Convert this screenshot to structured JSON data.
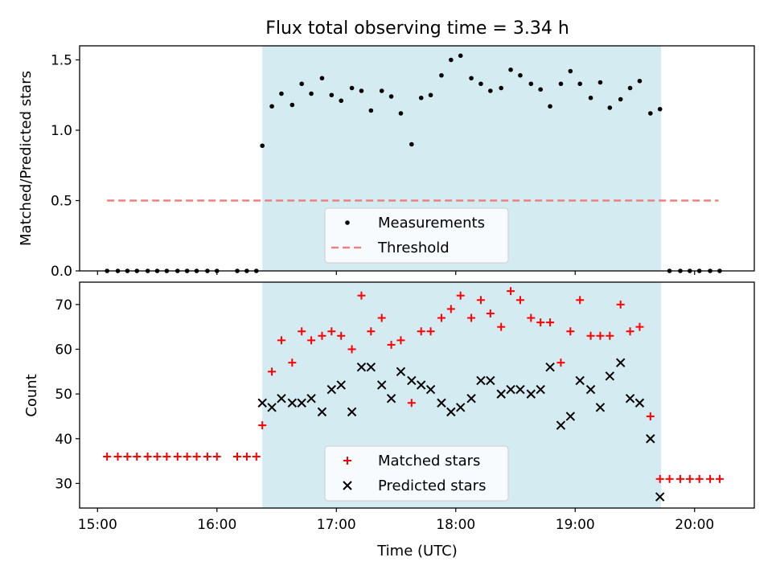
{
  "title": "Flux total observing time = 3.34 h",
  "chart_data": [
    {
      "type": "scatter",
      "title": "Flux total observing time = 3.34 h",
      "xlabel": "",
      "ylabel": "Matched/Predicted stars",
      "x_unit": "hours UTC",
      "xlim": [
        14.85,
        20.5
      ],
      "ylim": [
        0,
        1.6
      ],
      "yticks": [
        "0.0",
        "0.5",
        "1.0",
        "1.5"
      ],
      "shaded_region": {
        "x_start": 16.38,
        "x_end": 19.72,
        "color": "#add8e6"
      },
      "threshold": {
        "value": 0.5,
        "x_start": 15.08,
        "x_end": 20.2,
        "color": "#f08080"
      },
      "legend": {
        "placement": "lower center",
        "entries": [
          "Measurements",
          "Threshold"
        ]
      },
      "series": [
        {
          "name": "Measurements",
          "x": [
            15.08,
            15.17,
            15.25,
            15.33,
            15.42,
            15.5,
            15.58,
            15.67,
            15.75,
            15.83,
            15.92,
            16.0,
            16.17,
            16.25,
            16.33,
            16.38,
            16.46,
            16.54,
            16.63,
            16.71,
            16.79,
            16.88,
            16.96,
            17.04,
            17.13,
            17.21,
            17.29,
            17.38,
            17.46,
            17.54,
            17.63,
            17.71,
            17.79,
            17.88,
            17.96,
            18.04,
            18.13,
            18.21,
            18.29,
            18.38,
            18.46,
            18.54,
            18.63,
            18.71,
            18.79,
            18.88,
            18.96,
            19.04,
            19.13,
            19.21,
            19.29,
            19.38,
            19.46,
            19.54,
            19.63,
            19.71,
            19.79,
            19.88,
            19.96,
            20.04,
            20.13,
            20.21
          ],
          "y": [
            0,
            0,
            0,
            0,
            0,
            0,
            0,
            0,
            0,
            0,
            0,
            0,
            0,
            0,
            0,
            0.89,
            1.17,
            1.26,
            1.18,
            1.33,
            1.26,
            1.37,
            1.25,
            1.21,
            1.3,
            1.28,
            1.14,
            1.28,
            1.24,
            1.12,
            0.9,
            1.23,
            1.25,
            1.39,
            1.5,
            1.53,
            1.37,
            1.33,
            1.28,
            1.3,
            1.43,
            1.39,
            1.33,
            1.29,
            1.17,
            1.33,
            1.42,
            1.33,
            1.23,
            1.34,
            1.16,
            1.22,
            1.3,
            1.35,
            1.12,
            1.15,
            0,
            0,
            0,
            0,
            0,
            0
          ]
        }
      ]
    },
    {
      "type": "scatter",
      "xlabel": "Time (UTC)",
      "ylabel": "Count",
      "x_unit": "hours UTC",
      "xlim": [
        14.85,
        20.5
      ],
      "ylim": [
        24.5,
        75
      ],
      "xticks": [
        "15:00",
        "16:00",
        "17:00",
        "18:00",
        "19:00",
        "20:00"
      ],
      "yticks": [
        "30",
        "40",
        "50",
        "60",
        "70"
      ],
      "shaded_region": {
        "x_start": 16.38,
        "x_end": 19.72,
        "color": "#add8e6"
      },
      "legend": {
        "placement": "lower center",
        "entries": [
          "Matched stars",
          "Predicted stars"
        ]
      },
      "series": [
        {
          "name": "Matched stars",
          "marker": "plus",
          "color": "#ff0000",
          "x": [
            15.08,
            15.17,
            15.25,
            15.33,
            15.42,
            15.5,
            15.58,
            15.67,
            15.75,
            15.83,
            15.92,
            16.0,
            16.17,
            16.25,
            16.33,
            16.38,
            16.46,
            16.54,
            16.63,
            16.71,
            16.79,
            16.88,
            16.96,
            17.04,
            17.13,
            17.21,
            17.29,
            17.38,
            17.46,
            17.54,
            17.63,
            17.71,
            17.79,
            17.88,
            17.96,
            18.04,
            18.13,
            18.21,
            18.29,
            18.38,
            18.46,
            18.54,
            18.63,
            18.71,
            18.79,
            18.88,
            18.96,
            19.04,
            19.13,
            19.21,
            19.29,
            19.38,
            19.46,
            19.54,
            19.63,
            19.71,
            19.79,
            19.88,
            19.96,
            20.04,
            20.13,
            20.21
          ],
          "y": [
            36,
            36,
            36,
            36,
            36,
            36,
            36,
            36,
            36,
            36,
            36,
            36,
            36,
            36,
            36,
            43,
            55,
            62,
            57,
            64,
            62,
            63,
            64,
            63,
            60,
            72,
            64,
            67,
            61,
            62,
            48,
            64,
            64,
            67,
            69,
            72,
            67,
            71,
            68,
            65,
            73,
            71,
            67,
            66,
            66,
            57,
            64,
            71,
            63,
            63,
            63,
            70,
            64,
            65,
            45,
            31,
            31,
            31,
            31,
            31,
            31,
            31
          ]
        },
        {
          "name": "Predicted stars",
          "marker": "x",
          "color": "#000000",
          "x": [
            16.38,
            16.46,
            16.54,
            16.63,
            16.71,
            16.79,
            16.88,
            16.96,
            17.04,
            17.13,
            17.21,
            17.29,
            17.38,
            17.46,
            17.54,
            17.63,
            17.71,
            17.79,
            17.88,
            17.96,
            18.04,
            18.13,
            18.21,
            18.29,
            18.38,
            18.46,
            18.54,
            18.63,
            18.71,
            18.79,
            18.88,
            18.96,
            19.04,
            19.13,
            19.21,
            19.29,
            19.38,
            19.46,
            19.54,
            19.63,
            19.71
          ],
          "y": [
            48,
            47,
            49,
            48,
            48,
            49,
            46,
            51,
            52,
            46,
            56,
            56,
            52,
            49,
            55,
            53,
            52,
            51,
            48,
            46,
            47,
            49,
            53,
            53,
            50,
            51,
            51,
            50,
            51,
            56,
            43,
            45,
            53,
            51,
            47,
            54,
            57,
            49,
            48,
            40,
            27
          ]
        }
      ]
    }
  ]
}
